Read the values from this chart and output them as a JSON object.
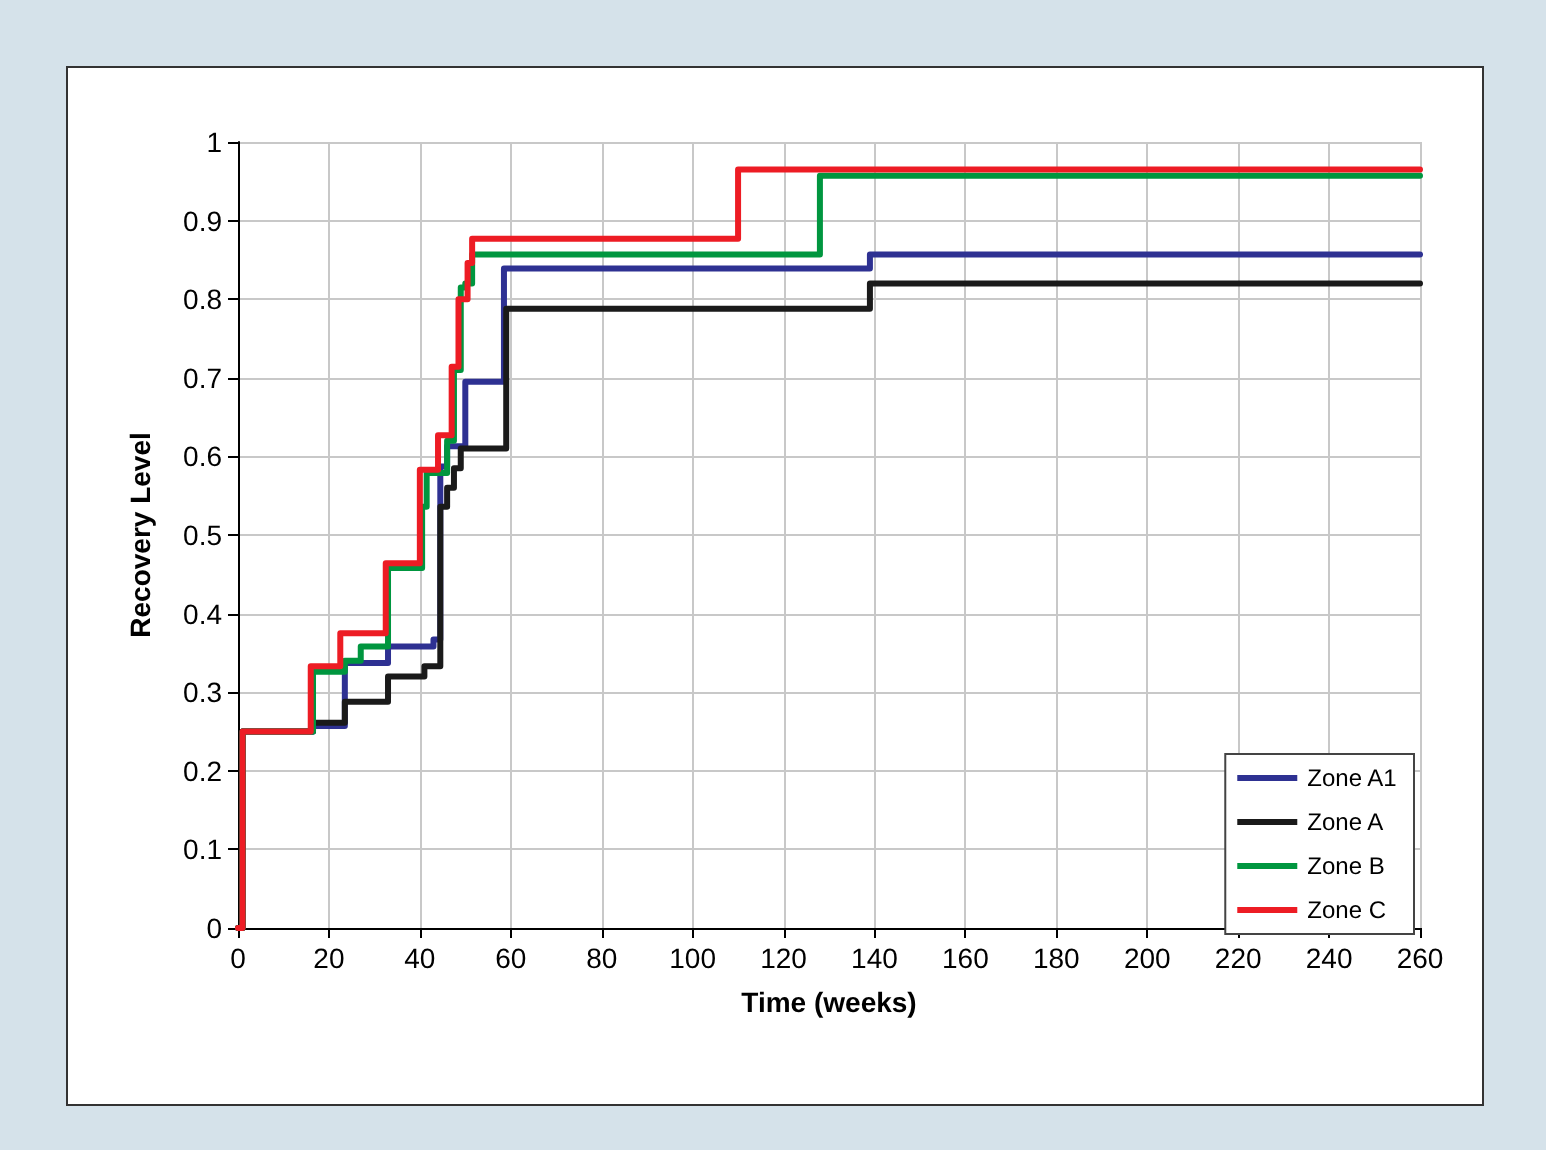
{
  "chart_data": {
    "type": "step",
    "xlabel": "Time (weeks)",
    "ylabel": "Recovery Level",
    "xlim": [
      0,
      260
    ],
    "xticks": [
      0,
      20,
      40,
      60,
      80,
      100,
      120,
      140,
      160,
      180,
      200,
      220,
      240,
      260
    ],
    "ylim": [
      0,
      1
    ],
    "yticks": [
      0,
      0.1,
      0.2,
      0.3,
      0.4,
      0.5,
      0.6,
      0.7,
      0.8,
      0.9,
      1
    ],
    "grid": true,
    "legend": "bottom right",
    "marker": "none",
    "line_style": "solid",
    "series": [
      {
        "name": "Zone A1",
        "color": "#2e3192",
        "x": [
          0,
          1,
          16.5,
          23.5,
          33,
          43,
          44.5,
          46,
          50,
          58.5,
          139,
          260
        ],
        "values": [
          0,
          0.25,
          0.257,
          0.337,
          0.358,
          0.367,
          0.587,
          0.613,
          0.695,
          0.839,
          0.857,
          0.857
        ]
      },
      {
        "name": "Zone A",
        "color": "#1a1a1a",
        "x": [
          0,
          1,
          16.5,
          23.5,
          33,
          41,
          44.5,
          46,
          47.5,
          49,
          59,
          139,
          260
        ],
        "values": [
          0,
          0.25,
          0.261,
          0.288,
          0.32,
          0.333,
          0.536,
          0.56,
          0.585,
          0.61,
          0.788,
          0.82,
          0.82
        ]
      },
      {
        "name": "Zone B",
        "color": "#00963f",
        "x": [
          0,
          1,
          16.5,
          23.5,
          27,
          33,
          40.5,
          41.5,
          46,
          47.5,
          49,
          50,
          51.5,
          128,
          260
        ],
        "values": [
          0,
          0.25,
          0.326,
          0.34,
          0.358,
          0.458,
          0.536,
          0.579,
          0.62,
          0.71,
          0.815,
          0.82,
          0.857,
          0.957,
          0.957
        ]
      },
      {
        "name": "Zone C",
        "color": "#ed1c24",
        "x": [
          0,
          1,
          16,
          22.5,
          32.5,
          40,
          44,
          47,
          48.5,
          50.5,
          51.5,
          110,
          260
        ],
        "values": [
          0,
          0.25,
          0.333,
          0.375,
          0.464,
          0.583,
          0.627,
          0.714,
          0.8,
          0.846,
          0.877,
          0.965,
          0.965
        ]
      }
    ]
  }
}
